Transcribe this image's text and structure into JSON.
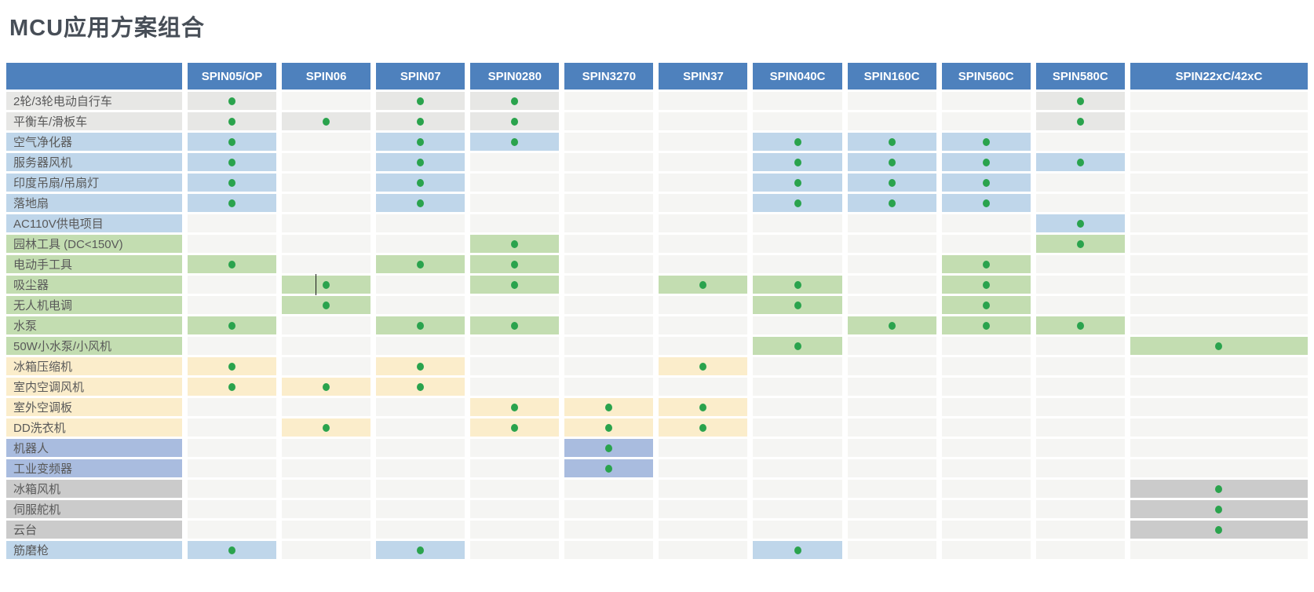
{
  "chart_data": {
    "type": "table",
    "title": "MCU应用方案组合",
    "columns": [
      "SPIN05/OP",
      "SPIN06",
      "SPIN07",
      "SPIN0280",
      "SPIN3270",
      "SPIN37",
      "SPIN040C",
      "SPIN160C",
      "SPIN560C",
      "SPIN580C",
      "SPIN22xC/42xC"
    ],
    "rows": [
      {
        "label": "2轮/3轮电动自行车",
        "group": "gray",
        "dots": [
          "SPIN05/OP",
          "SPIN07",
          "SPIN0280",
          "SPIN580C"
        ]
      },
      {
        "label": "平衡车/滑板车",
        "group": "gray",
        "dots": [
          "SPIN05/OP",
          "SPIN06",
          "SPIN07",
          "SPIN0280",
          "SPIN580C"
        ]
      },
      {
        "label": "空气净化器",
        "group": "blue",
        "dots": [
          "SPIN05/OP",
          "SPIN07",
          "SPIN0280",
          "SPIN040C",
          "SPIN160C",
          "SPIN560C"
        ]
      },
      {
        "label": "服务器风机",
        "group": "blue",
        "dots": [
          "SPIN05/OP",
          "SPIN07",
          "SPIN040C",
          "SPIN160C",
          "SPIN560C",
          "SPIN580C"
        ]
      },
      {
        "label": "印度吊扇/吊扇灯",
        "group": "blue",
        "dots": [
          "SPIN05/OP",
          "SPIN07",
          "SPIN040C",
          "SPIN160C",
          "SPIN560C"
        ]
      },
      {
        "label": "落地扇",
        "group": "blue",
        "dots": [
          "SPIN05/OP",
          "SPIN07",
          "SPIN040C",
          "SPIN160C",
          "SPIN560C"
        ]
      },
      {
        "label": "AC110V供电项目",
        "group": "blue",
        "dots": [
          "SPIN580C"
        ]
      },
      {
        "label": "园林工具 (DC<150V)",
        "group": "green",
        "dots": [
          "SPIN0280",
          "SPIN580C"
        ]
      },
      {
        "label": "电动手工具",
        "group": "green",
        "dots": [
          "SPIN05/OP",
          "SPIN07",
          "SPIN0280",
          "SPIN560C"
        ]
      },
      {
        "label": "吸尘器",
        "group": "green",
        "dots": [
          "SPIN06",
          "SPIN0280",
          "SPIN37",
          "SPIN040C",
          "SPIN560C"
        ]
      },
      {
        "label": "无人机电调",
        "group": "green",
        "dots": [
          "SPIN06",
          "SPIN040C",
          "SPIN560C"
        ]
      },
      {
        "label": "水泵",
        "group": "green",
        "dots": [
          "SPIN05/OP",
          "SPIN07",
          "SPIN0280",
          "SPIN160C",
          "SPIN560C",
          "SPIN580C"
        ]
      },
      {
        "label": "50W小水泵/小风机",
        "group": "green",
        "dots": [
          "SPIN040C",
          "SPIN22xC/42xC"
        ]
      },
      {
        "label": "冰箱压缩机",
        "group": "yellow",
        "dots": [
          "SPIN05/OP",
          "SPIN07",
          "SPIN37"
        ]
      },
      {
        "label": "室内空调风机",
        "group": "yellow",
        "dots": [
          "SPIN05/OP",
          "SPIN06",
          "SPIN07"
        ]
      },
      {
        "label": "室外空调板",
        "group": "yellow",
        "dots": [
          "SPIN0280",
          "SPIN3270",
          "SPIN37"
        ]
      },
      {
        "label": "DD洗衣机",
        "group": "yellow",
        "dots": [
          "SPIN06",
          "SPIN0280",
          "SPIN3270",
          "SPIN37"
        ]
      },
      {
        "label": "机器人",
        "group": "darkblue",
        "dots": [
          "SPIN3270"
        ]
      },
      {
        "label": "工业变频器",
        "group": "darkblue",
        "dots": [
          "SPIN3270"
        ]
      },
      {
        "label": "冰箱风机",
        "group": "darkgray",
        "dots": [
          "SPIN22xC/42xC"
        ]
      },
      {
        "label": "伺服舵机",
        "group": "darkgray",
        "dots": [
          "SPIN22xC/42xC"
        ]
      },
      {
        "label": "云台",
        "group": "darkgray",
        "dots": [
          "SPIN22xC/42xC"
        ]
      },
      {
        "label": "筋磨枪",
        "group": "blue",
        "dots": [
          "SPIN05/OP",
          "SPIN07",
          "SPIN040C"
        ]
      }
    ],
    "colors": {
      "header_bg": "#4e81bd",
      "header_text": "#ffffff",
      "dot": "#2aa34d",
      "cell_default": "#f5f5f3",
      "group_gray": "#e7e7e5",
      "group_blue": "#bfd6ea",
      "group_green": "#c3ddb1",
      "group_yellow": "#fbedcb",
      "group_darkblue": "#a9bcdf",
      "group_darkgray": "#cbcbcb",
      "label_text": "#595959",
      "title_text": "#474e57"
    },
    "artifact": {
      "type": "text-cursor",
      "row": "吸尘器",
      "column": "SPIN06"
    }
  }
}
